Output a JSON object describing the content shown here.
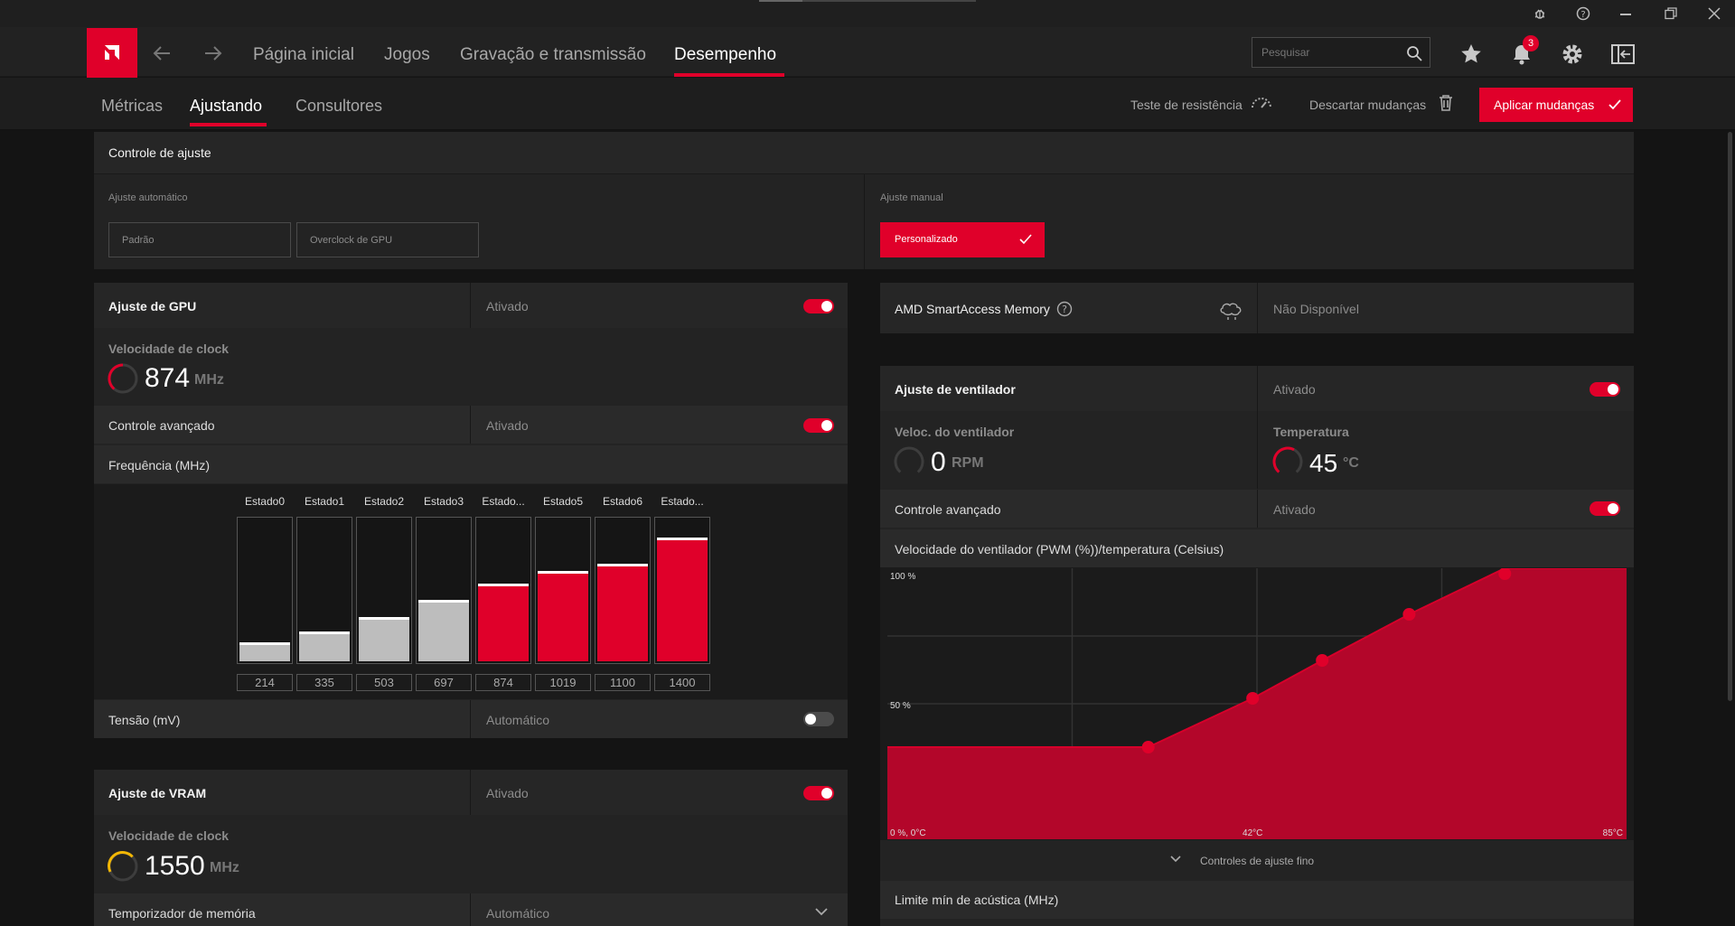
{
  "nav": {
    "home": "Página inicial",
    "games": "Jogos",
    "recording": "Gravação e transmissão",
    "performance": "Desempenho",
    "search_placeholder": "Pesquisar",
    "notifications_count": "3"
  },
  "subnav": {
    "metrics": "Métricas",
    "tuning": "Ajustando",
    "advisors": "Consultores",
    "stress_test": "Teste de resistência",
    "discard": "Descartar mudanças",
    "apply": "Aplicar mudanças"
  },
  "tuning_control": {
    "title": "Controle de ajuste",
    "auto_label": "Ajuste automático",
    "auto_options": [
      "Padrão",
      "Overclock de GPU"
    ],
    "manual_label": "Ajuste manual",
    "manual_selected": "Personalizado"
  },
  "gpu": {
    "title": "Ajuste de GPU",
    "status": "Ativado",
    "clock_label": "Velocidade de clock",
    "clock_value": "874",
    "clock_unit": "MHz",
    "advanced_label": "Controle avançado",
    "advanced_status": "Ativado",
    "freq_label": "Frequência (MHz)",
    "states": [
      {
        "name": "Estado0",
        "value": 214,
        "active": false
      },
      {
        "name": "Estado1",
        "value": 335,
        "active": false
      },
      {
        "name": "Estado2",
        "value": 503,
        "active": false
      },
      {
        "name": "Estado3",
        "value": 697,
        "active": false
      },
      {
        "name": "Estado...",
        "value": 874,
        "active": true
      },
      {
        "name": "Estado5",
        "value": 1019,
        "active": true
      },
      {
        "name": "Estado6",
        "value": 1100,
        "active": true
      },
      {
        "name": "Estado...",
        "value": 1400,
        "active": true
      }
    ],
    "freq_max": 1600,
    "voltage_label": "Tensão (mV)",
    "voltage_status": "Automático"
  },
  "vram": {
    "title": "Ajuste de VRAM",
    "status": "Ativado",
    "clock_label": "Velocidade de clock",
    "clock_value": "1550",
    "clock_unit": "MHz",
    "timing_label": "Temporizador de memória",
    "timing_value": "Automático"
  },
  "sam": {
    "label": "AMD SmartAccess Memory",
    "status": "Não Disponível"
  },
  "fan": {
    "title": "Ajuste de ventilador",
    "status": "Ativado",
    "speed_label": "Veloc. do ventilador",
    "speed_value": "0",
    "speed_unit": "RPM",
    "temp_label": "Temperatura",
    "temp_value": "45",
    "temp_unit": "°C",
    "advanced_label": "Controle avançado",
    "advanced_status": "Ativado",
    "curve_title": "Velocidade do ventilador (PWM (%))/temperatura (Celsius)",
    "fine_tune": "Controles de ajuste fino",
    "acoustic_label": "Limite mín de acústica (MHz)"
  },
  "colors": {
    "accent": "#e0002a",
    "panel": "#232323",
    "gold": "#f2b705"
  },
  "chart_data": {
    "type": "area",
    "xlabel": "",
    "ylabel": "",
    "ylim": [
      0,
      100
    ],
    "tick_labels": {
      "y_top": "100 %",
      "y_mid": "50 %",
      "origin": "0 %, 0°C",
      "x_mid": "42°C",
      "x_max": "85°C"
    },
    "xlim": [
      0,
      85
    ],
    "points": [
      [
        0,
        34
      ],
      [
        30,
        34
      ],
      [
        42,
        52
      ],
      [
        50,
        66
      ],
      [
        60,
        83
      ],
      [
        71,
        100
      ],
      [
        85,
        100
      ]
    ],
    "markers": [
      [
        30,
        34
      ],
      [
        42,
        52
      ],
      [
        50,
        66
      ],
      [
        60,
        83
      ],
      [
        71,
        100
      ]
    ]
  }
}
